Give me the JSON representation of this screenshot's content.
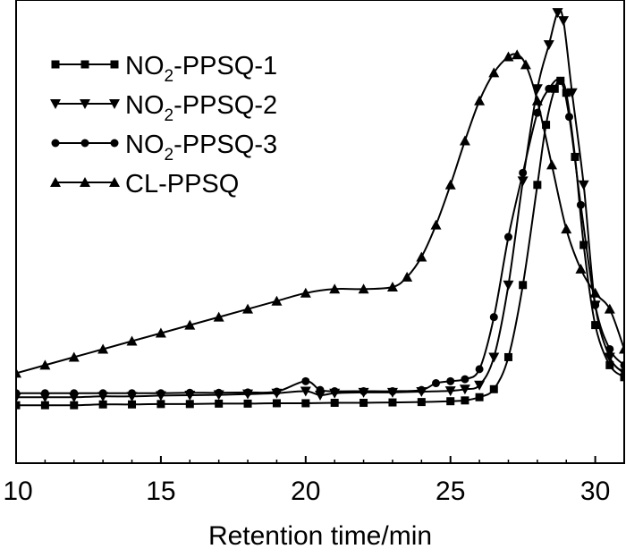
{
  "chart_data": {
    "type": "line",
    "title": "",
    "xlabel": "Retention time/min",
    "ylabel": "",
    "xlim": [
      10,
      31
    ],
    "ylim": [
      0,
      100
    ],
    "xticks": [
      10,
      15,
      20,
      25,
      30
    ],
    "xtick_labels": [
      "10",
      "15",
      "20",
      "25",
      "30"
    ],
    "grid": false,
    "legend_position": "top-left",
    "series": [
      {
        "name": "NO2-PPSQ-1",
        "label_main": "NO",
        "label_sub": "2",
        "label_rest": "-PPSQ-1",
        "marker": "square",
        "x": [
          10,
          11,
          12,
          13,
          14,
          15,
          16,
          17,
          18,
          19,
          20,
          21,
          22,
          23,
          24,
          25,
          25.5,
          26,
          26.5,
          27,
          27.5,
          28,
          28.3,
          28.6,
          28.8,
          29,
          29.3,
          29.6,
          30,
          30.5,
          31
        ],
        "y": [
          10,
          10,
          10,
          10.2,
          10.2,
          10.3,
          10.3,
          10.4,
          10.4,
          10.5,
          10.5,
          10.6,
          10.6,
          10.7,
          10.8,
          11,
          11.2,
          12,
          14,
          22,
          40,
          65,
          80,
          89,
          91,
          88,
          72,
          50,
          30,
          20,
          17
        ]
      },
      {
        "name": "NO2-PPSQ-2",
        "label_main": "NO",
        "label_sub": "2",
        "label_rest": "-PPSQ-2",
        "marker": "triangle-down",
        "x": [
          10,
          11,
          12,
          13,
          14,
          15,
          16,
          17,
          18,
          19,
          20,
          20.5,
          21,
          22,
          23,
          24,
          25,
          25.5,
          26,
          26.5,
          27,
          27.5,
          28,
          28.4,
          28.7,
          28.9,
          29.2,
          29.6,
          30,
          30.5,
          31
        ],
        "y": [
          12,
          12,
          12,
          12.2,
          12.2,
          12.4,
          12.5,
          12.6,
          12.8,
          13,
          13.5,
          12.5,
          13,
          13.2,
          13.2,
          13.4,
          13.6,
          14,
          15,
          22,
          40,
          66,
          89,
          100,
          108,
          106,
          88,
          65,
          35,
          22,
          18
        ]
      },
      {
        "name": "NO2-PPSQ-3",
        "label_main": "NO",
        "label_sub": "2",
        "label_rest": "-PPSQ-3",
        "marker": "circle",
        "x": [
          10,
          11,
          12,
          13,
          14,
          15,
          16,
          17,
          18,
          19,
          20,
          20.5,
          21,
          22,
          23,
          24,
          24.5,
          25,
          25.5,
          26,
          26.5,
          27,
          27.5,
          28,
          28.4,
          28.8,
          29.1,
          29.5,
          30,
          30.5,
          31
        ],
        "y": [
          13,
          13,
          13,
          13,
          13,
          13,
          13.1,
          13.1,
          13.2,
          13.4,
          16,
          13.8,
          13.5,
          13.5,
          13.5,
          13.8,
          15.5,
          16,
          16.5,
          19,
          32,
          52,
          68,
          83,
          89,
          91,
          82,
          60,
          35,
          24,
          20
        ]
      },
      {
        "name": "CL-PPSQ",
        "label_main": "CL-PPSQ",
        "label_sub": "",
        "label_rest": "",
        "marker": "triangle-up",
        "x": [
          10,
          11,
          12,
          13,
          14,
          15,
          16,
          17,
          18,
          19,
          20,
          21,
          22,
          23,
          23.5,
          24,
          24.5,
          25,
          25.5,
          26,
          26.5,
          27,
          27.3,
          27.6,
          28,
          28.5,
          29,
          29.5,
          30,
          30.5,
          31
        ],
        "y": [
          18,
          20,
          22,
          24,
          26,
          28,
          30,
          32,
          34,
          36,
          38,
          39,
          39,
          39.5,
          42,
          47,
          55,
          65,
          76,
          86,
          93,
          97,
          97.5,
          95,
          86,
          70,
          54,
          44,
          38,
          34,
          24
        ]
      }
    ]
  }
}
